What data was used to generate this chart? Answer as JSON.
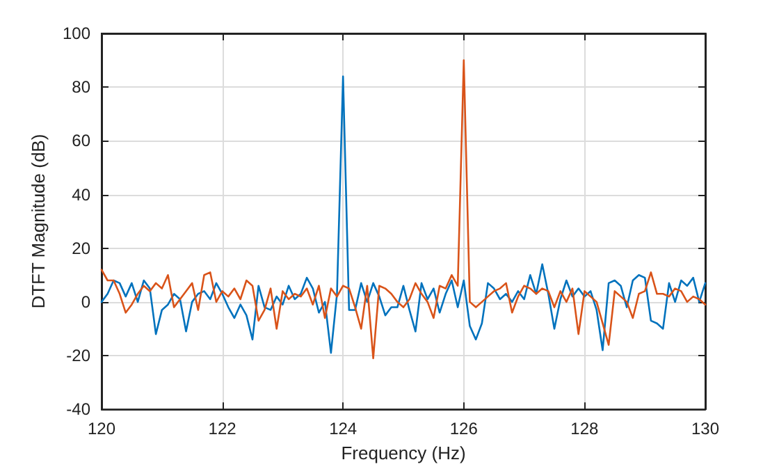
{
  "chart_data": {
    "type": "line",
    "xlabel": "Frequency (Hz)",
    "ylabel": "DTFT Magnitude (dB)",
    "x": [
      120,
      120.1,
      120.2,
      120.3,
      120.4,
      120.5,
      120.6,
      120.7,
      120.8,
      120.9,
      121,
      121.1,
      121.2,
      121.3,
      121.4,
      121.5,
      121.6,
      121.7,
      121.8,
      121.9,
      122,
      122.1,
      122.2,
      122.3,
      122.4,
      122.5,
      122.6,
      122.7,
      122.8,
      122.9,
      123,
      123.1,
      123.2,
      123.3,
      123.4,
      123.5,
      123.6,
      123.7,
      123.8,
      123.9,
      124,
      124.1,
      124.2,
      124.3,
      124.4,
      124.5,
      124.6,
      124.7,
      124.8,
      124.9,
      125,
      125.1,
      125.2,
      125.3,
      125.4,
      125.5,
      125.6,
      125.7,
      125.8,
      125.9,
      126,
      126.1,
      126.2,
      126.3,
      126.4,
      126.5,
      126.6,
      126.7,
      126.8,
      126.9,
      127,
      127.1,
      127.2,
      127.3,
      127.4,
      127.5,
      127.6,
      127.7,
      127.8,
      127.9,
      128,
      128.1,
      128.2,
      128.3,
      128.4,
      128.5,
      128.6,
      128.7,
      128.8,
      128.9,
      129,
      129.1,
      129.2,
      129.3,
      129.4,
      129.5,
      129.6,
      129.7,
      129.8,
      129.9,
      130
    ],
    "series": [
      {
        "color": "#0072bd",
        "values": [
          0,
          3,
          8,
          7,
          2,
          7,
          0,
          8,
          5,
          -12,
          -3,
          -1,
          3,
          1,
          -11,
          0,
          3,
          4,
          1,
          7,
          3,
          -2,
          -6,
          -1,
          -5,
          -14,
          6,
          -2,
          -3,
          2,
          -1,
          6,
          1,
          3,
          9,
          5,
          -4,
          0,
          -19,
          3,
          84,
          -3,
          -3,
          7,
          0,
          7,
          2,
          -5,
          -2,
          -2,
          6,
          -3,
          -11,
          7,
          1,
          5,
          -4,
          3,
          8,
          -2,
          8,
          -9,
          -14,
          -8,
          7,
          5,
          1,
          3,
          0,
          4,
          1,
          10,
          3,
          14,
          3,
          -10,
          1,
          8,
          2,
          5,
          2,
          4,
          -3,
          -18,
          7,
          8,
          6,
          -2,
          8,
          10,
          9,
          -7,
          -8,
          -10,
          7,
          0,
          8,
          6,
          9,
          0,
          7
        ]
      },
      {
        "color": "#d95319",
        "values": [
          12,
          8,
          8,
          3,
          -4,
          -1,
          3,
          6,
          4,
          7,
          5,
          10,
          -2,
          1,
          4,
          7,
          -3,
          10,
          11,
          0,
          4,
          2,
          5,
          1,
          8,
          6,
          -7,
          -3,
          5,
          -10,
          4,
          1,
          3,
          2,
          5,
          -1,
          6,
          -6,
          5,
          2,
          6,
          5,
          -2,
          -10,
          6,
          -21,
          6,
          5,
          3,
          0,
          -2,
          1,
          7,
          3,
          0,
          -6,
          6,
          5,
          10,
          6,
          90,
          0,
          -2,
          0,
          2,
          4,
          5,
          7,
          -4,
          2,
          6,
          5,
          3,
          5,
          4,
          -2,
          4,
          0,
          5,
          -12,
          4,
          2,
          0,
          -8,
          -16,
          4,
          2,
          0,
          -6,
          3,
          4,
          11,
          3,
          3,
          2,
          5,
          4,
          0,
          2,
          1,
          -1
        ]
      }
    ],
    "xlim": [
      120,
      130
    ],
    "xticks": [
      120,
      122,
      124,
      126,
      128,
      130
    ],
    "ylim": [
      -40,
      100
    ],
    "yticks": [
      -40,
      -20,
      0,
      20,
      40,
      60,
      80,
      100
    ],
    "grid": true,
    "marker": "none",
    "line_style": "solid"
  }
}
